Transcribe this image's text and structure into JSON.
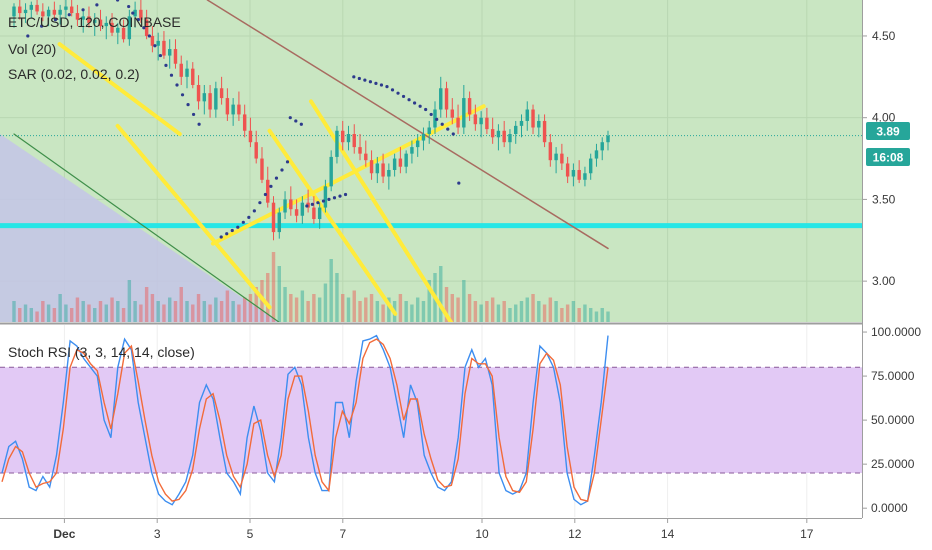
{
  "colors": {
    "background": "#c9e6c2",
    "lower_panel_bg": "#ffffff",
    "rsi_band": "#e2c9f5",
    "up": "#26a69a",
    "down": "#ef5350",
    "sar": "#2d3a8c",
    "trend_yellow": "#ffeb3b",
    "support_cyan": "#26e6e6",
    "resistance_brown": "#a86b60",
    "k_line": "#3d8ef0",
    "d_line": "#f26b3a",
    "price_tag": "#26a69a"
  },
  "legend": {
    "symbol": "ETC/USD, 120, COINBASE",
    "vol": "Vol (20)",
    "sar": "SAR (0.02, 0.02, 0.2)",
    "rsi": "Stoch RSI (3, 3, 14, 14, close)"
  },
  "price_tag": {
    "price": "3.89",
    "countdown": "16:08"
  },
  "price_axis": [
    "4.50",
    "4.00",
    "3.50",
    "3.00"
  ],
  "rsi_axis": [
    "100.0000",
    "75.0000",
    "50.0000",
    "25.0000",
    "0.0000"
  ],
  "time_axis": [
    "Dec",
    "3",
    "5",
    "7",
    "10",
    "12",
    "14",
    "17"
  ],
  "chart_data": [
    {
      "type": "candlestick",
      "title": "ETC/USD, 120, COINBASE",
      "ylim": [
        2.75,
        4.72
      ],
      "y_ticks": [
        4.5,
        4.0,
        3.5,
        3.0
      ],
      "x_ticks": [
        "Dec",
        "3",
        "5",
        "7",
        "10",
        "12",
        "14",
        "17"
      ],
      "last_price": 3.89,
      "candles_ohlc": [
        [
          4.62,
          4.7,
          4.55,
          4.68
        ],
        [
          4.68,
          4.72,
          4.6,
          4.64
        ],
        [
          4.64,
          4.7,
          4.58,
          4.66
        ],
        [
          4.66,
          4.71,
          4.61,
          4.69
        ],
        [
          4.69,
          4.72,
          4.63,
          4.65
        ],
        [
          4.65,
          4.7,
          4.59,
          4.62
        ],
        [
          4.62,
          4.68,
          4.56,
          4.66
        ],
        [
          4.66,
          4.71,
          4.6,
          4.63
        ],
        [
          4.63,
          4.69,
          4.57,
          4.66
        ],
        [
          4.66,
          4.72,
          4.61,
          4.68
        ],
        [
          4.68,
          4.72,
          4.62,
          4.64
        ],
        [
          4.64,
          4.69,
          4.56,
          4.6
        ],
        [
          4.6,
          4.66,
          4.52,
          4.62
        ],
        [
          4.62,
          4.68,
          4.55,
          4.58
        ],
        [
          4.58,
          4.64,
          4.5,
          4.6
        ],
        [
          4.6,
          4.66,
          4.53,
          4.56
        ],
        [
          4.56,
          4.62,
          4.48,
          4.58
        ],
        [
          4.58,
          4.64,
          4.5,
          4.52
        ],
        [
          4.52,
          4.58,
          4.45,
          4.55
        ],
        [
          4.55,
          4.6,
          4.46,
          4.48
        ],
        [
          4.48,
          4.66,
          4.44,
          4.62
        ],
        [
          4.62,
          4.71,
          4.55,
          4.66
        ],
        [
          4.66,
          4.72,
          4.58,
          4.6
        ],
        [
          4.6,
          4.66,
          4.48,
          4.5
        ],
        [
          4.5,
          4.56,
          4.4,
          4.44
        ],
        [
          4.44,
          4.52,
          4.35,
          4.47
        ],
        [
          4.47,
          4.53,
          4.36,
          4.38
        ],
        [
          4.38,
          4.48,
          4.3,
          4.42
        ],
        [
          4.42,
          4.48,
          4.3,
          4.33
        ],
        [
          4.33,
          4.38,
          4.2,
          4.25
        ],
        [
          4.25,
          4.35,
          4.18,
          4.3
        ],
        [
          4.3,
          4.34,
          4.18,
          4.2
        ],
        [
          4.2,
          4.26,
          4.05,
          4.1
        ],
        [
          4.1,
          4.2,
          4.02,
          4.15
        ],
        [
          4.15,
          4.2,
          4.0,
          4.05
        ],
        [
          4.05,
          4.22,
          4.0,
          4.18
        ],
        [
          4.18,
          4.25,
          4.08,
          4.12
        ],
        [
          4.12,
          4.18,
          3.98,
          4.02
        ],
        [
          4.02,
          4.12,
          3.95,
          4.08
        ],
        [
          4.08,
          4.16,
          3.98,
          4.02
        ],
        [
          4.02,
          4.08,
          3.88,
          3.92
        ],
        [
          3.92,
          4.0,
          3.82,
          3.85
        ],
        [
          3.85,
          3.92,
          3.72,
          3.75
        ],
        [
          3.75,
          3.82,
          3.6,
          3.62
        ],
        [
          3.62,
          3.7,
          3.45,
          3.48
        ],
        [
          3.48,
          3.52,
          3.25,
          3.3
        ],
        [
          3.3,
          3.45,
          3.26,
          3.42
        ],
        [
          3.42,
          3.55,
          3.38,
          3.5
        ],
        [
          3.5,
          3.58,
          3.4,
          3.44
        ],
        [
          3.44,
          3.5,
          3.36,
          3.4
        ],
        [
          3.4,
          3.52,
          3.35,
          3.48
        ],
        [
          3.48,
          3.56,
          3.42,
          3.45
        ],
        [
          3.45,
          3.52,
          3.35,
          3.38
        ],
        [
          3.38,
          3.48,
          3.32,
          3.45
        ],
        [
          3.45,
          3.62,
          3.42,
          3.58
        ],
        [
          3.58,
          3.8,
          3.55,
          3.76
        ],
        [
          3.76,
          3.95,
          3.72,
          3.92
        ],
        [
          3.92,
          3.98,
          3.8,
          3.85
        ],
        [
          3.85,
          3.95,
          3.8,
          3.9
        ],
        [
          3.9,
          3.96,
          3.78,
          3.82
        ],
        [
          3.82,
          3.9,
          3.74,
          3.78
        ],
        [
          3.78,
          3.86,
          3.7,
          3.74
        ],
        [
          3.74,
          3.8,
          3.62,
          3.66
        ],
        [
          3.66,
          3.76,
          3.6,
          3.72
        ],
        [
          3.72,
          3.78,
          3.6,
          3.64
        ],
        [
          3.64,
          3.72,
          3.56,
          3.68
        ],
        [
          3.68,
          3.78,
          3.64,
          3.75
        ],
        [
          3.75,
          3.82,
          3.66,
          3.7
        ],
        [
          3.7,
          3.8,
          3.66,
          3.78
        ],
        [
          3.78,
          3.86,
          3.72,
          3.82
        ],
        [
          3.82,
          3.9,
          3.76,
          3.86
        ],
        [
          3.86,
          3.94,
          3.8,
          3.9
        ],
        [
          3.9,
          3.98,
          3.84,
          3.94
        ],
        [
          3.94,
          4.1,
          3.9,
          4.05
        ],
        [
          4.05,
          4.25,
          4.0,
          4.18
        ],
        [
          4.18,
          4.22,
          4.0,
          4.05
        ],
        [
          4.05,
          4.12,
          3.96,
          4.0
        ],
        [
          4.0,
          4.08,
          3.9,
          3.94
        ],
        [
          3.94,
          4.2,
          3.9,
          4.12
        ],
        [
          4.12,
          4.16,
          3.98,
          4.02
        ],
        [
          4.02,
          4.08,
          3.92,
          3.96
        ],
        [
          3.96,
          4.04,
          3.88,
          4.0
        ],
        [
          4.0,
          4.06,
          3.9,
          3.93
        ],
        [
          3.93,
          4.0,
          3.84,
          3.88
        ],
        [
          3.88,
          3.96,
          3.8,
          3.92
        ],
        [
          3.92,
          3.98,
          3.82,
          3.85
        ],
        [
          3.85,
          3.93,
          3.78,
          3.9
        ],
        [
          3.9,
          3.98,
          3.84,
          3.95
        ],
        [
          3.95,
          4.02,
          3.88,
          3.98
        ],
        [
          3.98,
          4.1,
          3.92,
          4.05
        ],
        [
          4.05,
          4.08,
          3.9,
          3.94
        ],
        [
          3.94,
          4.02,
          3.88,
          3.98
        ],
        [
          3.98,
          4.02,
          3.82,
          3.85
        ],
        [
          3.85,
          3.9,
          3.7,
          3.74
        ],
        [
          3.74,
          3.82,
          3.66,
          3.78
        ],
        [
          3.78,
          3.84,
          3.68,
          3.72
        ],
        [
          3.72,
          3.76,
          3.6,
          3.64
        ],
        [
          3.64,
          3.72,
          3.58,
          3.68
        ],
        [
          3.68,
          3.74,
          3.6,
          3.62
        ],
        [
          3.62,
          3.7,
          3.58,
          3.66
        ],
        [
          3.66,
          3.78,
          3.62,
          3.75
        ],
        [
          3.75,
          3.84,
          3.7,
          3.8
        ],
        [
          3.8,
          3.88,
          3.74,
          3.85
        ],
        [
          3.85,
          3.92,
          3.8,
          3.89
        ]
      ],
      "volume": [
        0.3,
        0.2,
        0.25,
        0.2,
        0.15,
        0.3,
        0.25,
        0.2,
        0.4,
        0.25,
        0.2,
        0.35,
        0.3,
        0.25,
        0.2,
        0.3,
        0.25,
        0.35,
        0.3,
        0.2,
        0.6,
        0.3,
        0.25,
        0.5,
        0.4,
        0.3,
        0.25,
        0.35,
        0.3,
        0.5,
        0.3,
        0.25,
        0.4,
        0.3,
        0.25,
        0.35,
        0.3,
        0.45,
        0.3,
        0.25,
        0.35,
        0.4,
        0.5,
        0.6,
        0.7,
        1.0,
        0.8,
        0.5,
        0.4,
        0.35,
        0.45,
        0.3,
        0.4,
        0.35,
        0.55,
        0.9,
        0.7,
        0.4,
        0.35,
        0.45,
        0.3,
        0.35,
        0.4,
        0.3,
        0.25,
        0.35,
        0.3,
        0.4,
        0.3,
        0.25,
        0.35,
        0.3,
        0.6,
        0.7,
        0.8,
        0.5,
        0.4,
        0.35,
        0.6,
        0.4,
        0.3,
        0.25,
        0.3,
        0.35,
        0.25,
        0.3,
        0.2,
        0.25,
        0.3,
        0.35,
        0.4,
        0.3,
        0.25,
        0.35,
        0.3,
        0.2,
        0.25,
        0.3,
        0.2,
        0.25,
        0.2,
        0.15,
        0.2,
        0.15
      ],
      "sar_points": [
        [
          1.0,
          4.5
        ],
        [
          2.0,
          4.56
        ],
        [
          3.0,
          4.6
        ],
        [
          4.0,
          4.63
        ],
        [
          5.0,
          4.66
        ],
        [
          6.0,
          4.69
        ],
        [
          7.5,
          4.72
        ],
        [
          8.3,
          4.68
        ],
        [
          8.6,
          4.64
        ],
        [
          9.0,
          4.6
        ],
        [
          9.4,
          4.55
        ],
        [
          9.8,
          4.5
        ],
        [
          10.2,
          4.44
        ],
        [
          10.6,
          4.38
        ],
        [
          11.0,
          4.32
        ],
        [
          11.4,
          4.26
        ],
        [
          11.8,
          4.2
        ],
        [
          12.2,
          4.14
        ],
        [
          12.6,
          4.08
        ],
        [
          13.0,
          4.02
        ],
        [
          13.4,
          3.96
        ],
        [
          15.0,
          3.27
        ],
        [
          15.4,
          3.29
        ],
        [
          15.8,
          3.31
        ],
        [
          16.2,
          3.33
        ],
        [
          16.6,
          3.36
        ],
        [
          17.0,
          3.39
        ],
        [
          17.4,
          3.43
        ],
        [
          17.8,
          3.48
        ],
        [
          18.2,
          3.53
        ],
        [
          18.6,
          3.58
        ],
        [
          19.0,
          3.63
        ],
        [
          19.4,
          3.68
        ],
        [
          19.8,
          3.73
        ],
        [
          20.0,
          4.0
        ],
        [
          20.4,
          3.98
        ],
        [
          20.8,
          3.96
        ],
        [
          21.2,
          3.46
        ],
        [
          21.6,
          3.47
        ],
        [
          22.0,
          3.48
        ],
        [
          22.4,
          3.49
        ],
        [
          22.8,
          3.5
        ],
        [
          23.2,
          3.51
        ],
        [
          23.6,
          3.52
        ],
        [
          24.0,
          3.53
        ],
        [
          24.6,
          4.25
        ],
        [
          25.0,
          4.24
        ],
        [
          25.4,
          4.23
        ],
        [
          25.8,
          4.22
        ],
        [
          26.2,
          4.21
        ],
        [
          26.6,
          4.2
        ],
        [
          27.0,
          4.19
        ],
        [
          27.4,
          4.17
        ],
        [
          27.8,
          4.15
        ],
        [
          28.2,
          4.13
        ],
        [
          28.6,
          4.11
        ],
        [
          29.0,
          4.09
        ],
        [
          29.4,
          4.07
        ],
        [
          29.8,
          4.05
        ],
        [
          30.2,
          4.02
        ],
        [
          30.6,
          3.99
        ],
        [
          31.0,
          3.96
        ],
        [
          31.4,
          3.93
        ],
        [
          31.8,
          3.9
        ],
        [
          32.2,
          3.6
        ]
      ],
      "horizontal_support": 3.34,
      "last_price_line": 3.89,
      "trend_lines": [
        {
          "color": "yellow",
          "from": [
            3.3,
            4.45
          ],
          "to": [
            12.0,
            3.9
          ]
        },
        {
          "color": "yellow",
          "from": [
            7.5,
            3.95
          ],
          "to": [
            18.5,
            2.84
          ]
        },
        {
          "color": "yellow",
          "from": [
            14.4,
            3.23
          ],
          "to": [
            34.0,
            4.07
          ]
        },
        {
          "color": "yellow",
          "from": [
            18.5,
            3.92
          ],
          "to": [
            27.6,
            2.8
          ]
        },
        {
          "color": "yellow",
          "from": [
            21.5,
            4.1
          ],
          "to": [
            32.0,
            2.7
          ]
        },
        {
          "color": "brown",
          "from": [
            14.0,
            4.72
          ],
          "to": [
            43.0,
            3.2
          ]
        },
        {
          "color": "green",
          "from": [
            0.0,
            3.9
          ],
          "to": [
            20.0,
            2.7
          ]
        }
      ]
    },
    {
      "type": "line",
      "title": "Stoch RSI (3, 3, 14, 14, close)",
      "ylim": [
        -5,
        104
      ],
      "y_ticks": [
        100,
        75,
        50,
        25,
        0
      ],
      "bands": [
        20,
        80
      ],
      "series": [
        {
          "values": [
            20,
            35,
            38,
            28,
            12,
            10,
            18,
            12,
            30,
            60,
            95,
            92,
            85,
            80,
            75,
            50,
            40,
            80,
            96,
            90,
            60,
            40,
            20,
            8,
            4,
            2,
            8,
            15,
            30,
            60,
            70,
            62,
            40,
            20,
            15,
            8,
            40,
            58,
            44,
            20,
            15,
            40,
            76,
            80,
            70,
            40,
            20,
            10,
            10,
            60,
            60,
            40,
            72,
            95,
            96,
            98,
            90,
            80,
            60,
            40,
            70,
            60,
            30,
            20,
            12,
            10,
            15,
            40,
            80,
            90,
            80,
            85,
            70,
            20,
            10,
            8,
            10,
            20,
            60,
            92,
            88,
            80,
            60,
            20,
            5,
            2,
            4,
            30,
            60,
            98
          ]
        },
        {
          "values": [
            15,
            28,
            35,
            32,
            20,
            12,
            14,
            15,
            20,
            45,
            80,
            90,
            88,
            82,
            78,
            60,
            45,
            65,
            88,
            92,
            72,
            50,
            30,
            15,
            8,
            4,
            5,
            10,
            22,
            45,
            62,
            65,
            50,
            30,
            18,
            12,
            25,
            48,
            50,
            30,
            18,
            30,
            62,
            75,
            75,
            55,
            30,
            15,
            10,
            40,
            55,
            48,
            60,
            85,
            94,
            96,
            93,
            85,
            70,
            50,
            62,
            62,
            42,
            28,
            16,
            12,
            13,
            28,
            65,
            85,
            82,
            82,
            75,
            40,
            18,
            10,
            9,
            15,
            45,
            82,
            88,
            84,
            70,
            35,
            12,
            5,
            4,
            20,
            50,
            80
          ]
        }
      ]
    }
  ]
}
